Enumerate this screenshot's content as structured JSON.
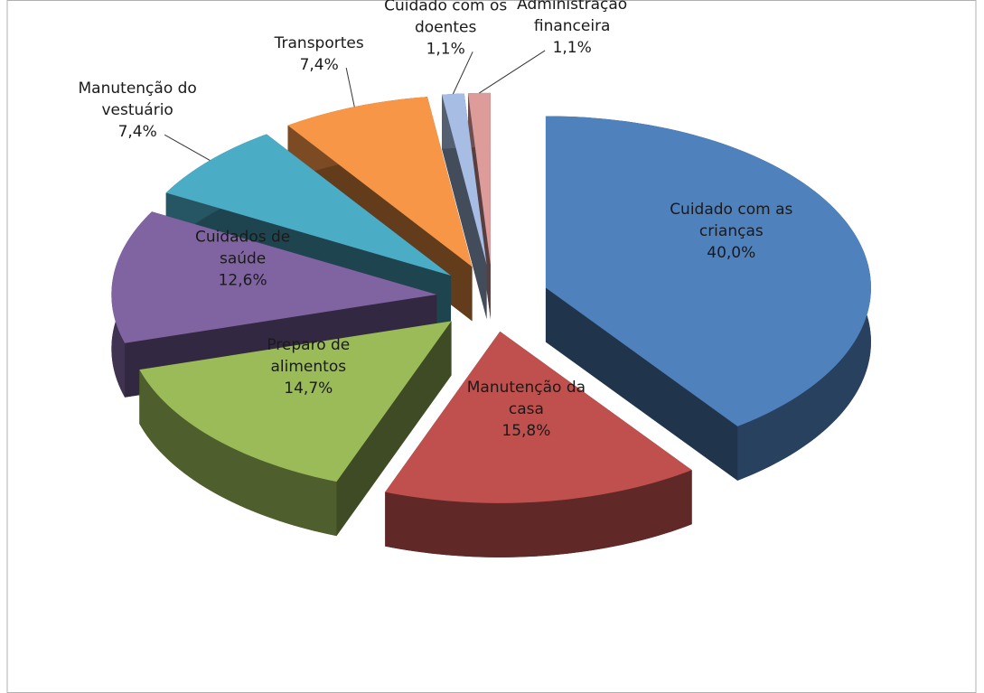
{
  "chart_data": {
    "type": "pie",
    "categories": [
      "Cuidado com as crianças",
      "Manutenção da casa",
      "Preparo de alimentos",
      "Cuidados de saúde",
      "Manutenção do vestuário",
      "Transportes",
      "Cuidado com os doentes",
      "Administração financeira"
    ],
    "values": [
      40.0,
      15.8,
      14.7,
      12.6,
      7.4,
      7.4,
      1.1,
      1.1
    ],
    "value_labels": [
      "40,0%",
      "15,8%",
      "14,7%",
      "12,6%",
      "7,4%",
      "7,4%",
      "1,1%",
      "1,1%"
    ],
    "colors": [
      "#4f81bd",
      "#c0504d",
      "#9bbb59",
      "#8064a2",
      "#4bacc6",
      "#f79646",
      "#a7bde3",
      "#dd9b9a"
    ]
  }
}
